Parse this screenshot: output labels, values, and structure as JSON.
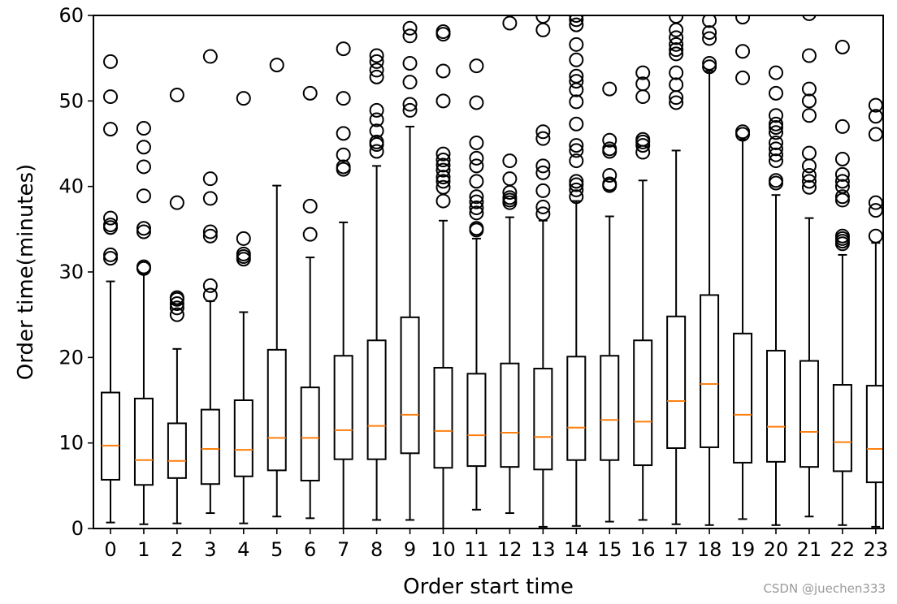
{
  "chart_data": {
    "type": "box",
    "xlabel": "Order start time",
    "ylabel": "Order time(minutes)",
    "ylim": [
      0,
      60
    ],
    "yticks": [
      0,
      10,
      20,
      30,
      40,
      50,
      60
    ],
    "categories": [
      "0",
      "1",
      "2",
      "3",
      "4",
      "5",
      "6",
      "7",
      "8",
      "9",
      "10",
      "11",
      "12",
      "13",
      "14",
      "15",
      "16",
      "17",
      "18",
      "19",
      "20",
      "21",
      "22",
      "23"
    ],
    "median_color": "#ff7f0e",
    "box_color": "#000000",
    "boxes": [
      {
        "label": "0",
        "whislo": 0.7,
        "q1": 5.7,
        "med": 9.7,
        "q3": 15.9,
        "whishi": 28.9,
        "fliers": [
          31.6,
          32.0,
          35.2,
          35.5,
          36.3,
          46.7,
          50.5,
          54.6
        ]
      },
      {
        "label": "1",
        "whislo": 0.5,
        "q1": 5.1,
        "med": 8.0,
        "q3": 15.2,
        "whishi": 29.8,
        "fliers": [
          30.4,
          30.6,
          34.7,
          35.1,
          38.9,
          42.3,
          44.6,
          46.8
        ]
      },
      {
        "label": "2",
        "whislo": 0.6,
        "q1": 5.9,
        "med": 7.9,
        "q3": 12.3,
        "whishi": 21.0,
        "fliers": [
          25.0,
          25.8,
          26.3,
          26.8,
          27.0,
          38.1,
          50.7
        ]
      },
      {
        "label": "3",
        "whislo": 1.8,
        "q1": 5.2,
        "med": 9.3,
        "q3": 13.9,
        "whishi": 26.6,
        "fliers": [
          27.3,
          28.4,
          34.2,
          34.7,
          38.6,
          40.9,
          55.2
        ]
      },
      {
        "label": "4",
        "whislo": 0.6,
        "q1": 6.1,
        "med": 9.2,
        "q3": 15.0,
        "whishi": 25.3,
        "fliers": [
          31.5,
          31.8,
          32.1,
          33.9,
          50.3
        ]
      },
      {
        "label": "5",
        "whislo": 1.4,
        "q1": 6.8,
        "med": 10.6,
        "q3": 20.9,
        "whishi": 40.1,
        "fliers": [
          54.2
        ]
      },
      {
        "label": "6",
        "whislo": 1.2,
        "q1": 5.6,
        "med": 10.6,
        "q3": 16.5,
        "whishi": 31.7,
        "fliers": [
          34.4,
          37.7,
          50.9
        ]
      },
      {
        "label": "7",
        "whislo": 0.0,
        "q1": 8.1,
        "med": 11.5,
        "q3": 20.2,
        "whishi": 35.8,
        "fliers": [
          42.0,
          42.3,
          43.7,
          46.2,
          50.3,
          56.1
        ]
      },
      {
        "label": "8",
        "whislo": 1.0,
        "q1": 8.1,
        "med": 12.0,
        "q3": 22.0,
        "whishi": 42.4,
        "fliers": [
          44.1,
          44.9,
          45.2,
          46.5,
          47.8,
          48.9,
          52.8,
          53.6,
          54.6,
          55.3
        ]
      },
      {
        "label": "9",
        "whislo": 1.0,
        "q1": 8.8,
        "med": 13.3,
        "q3": 24.7,
        "whishi": 47.0,
        "fliers": [
          48.9,
          49.6,
          52.2,
          54.4,
          57.6,
          58.5
        ]
      },
      {
        "label": "10",
        "whislo": 0.0,
        "q1": 7.1,
        "med": 11.4,
        "q3": 18.8,
        "whishi": 36.0,
        "fliers": [
          38.3,
          39.9,
          40.6,
          41.1,
          41.9,
          42.5,
          43.1,
          43.8,
          50.0,
          53.5,
          57.8,
          58.1
        ]
      },
      {
        "label": "11",
        "whislo": 2.2,
        "q1": 7.3,
        "med": 10.9,
        "q3": 18.1,
        "whishi": 33.9,
        "fliers": [
          34.9,
          35.1,
          36.9,
          37.5,
          38.2,
          38.8,
          40.6,
          42.4,
          43.3,
          45.1,
          49.8,
          54.1
        ]
      },
      {
        "label": "12",
        "whislo": 1.8,
        "q1": 7.2,
        "med": 11.2,
        "q3": 19.3,
        "whishi": 36.4,
        "fliers": [
          38.1,
          38.4,
          38.7,
          39.3,
          40.9,
          43.0,
          59.1
        ]
      },
      {
        "label": "13",
        "whislo": 0.2,
        "q1": 6.9,
        "med": 10.7,
        "q3": 18.7,
        "whishi": 36.0,
        "fliers": [
          36.8,
          37.6,
          39.5,
          41.6,
          42.4,
          45.6,
          46.4,
          58.3,
          59.9
        ]
      },
      {
        "label": "14",
        "whislo": 0.3,
        "q1": 8.0,
        "med": 11.8,
        "q3": 20.1,
        "whishi": 38.3,
        "fliers": [
          38.8,
          39.6,
          40.2,
          40.6,
          43.0,
          44.2,
          44.8,
          47.3,
          49.9,
          51.3,
          52.3,
          52.9,
          54.8,
          56.6,
          58.9,
          59.5,
          60.0
        ]
      },
      {
        "label": "15",
        "whislo": 0.8,
        "q1": 8.0,
        "med": 12.7,
        "q3": 20.2,
        "whishi": 36.5,
        "fliers": [
          40.1,
          40.3,
          41.3,
          44.1,
          44.4,
          45.4,
          51.4
        ]
      },
      {
        "label": "16",
        "whislo": 1.0,
        "q1": 7.4,
        "med": 12.5,
        "q3": 22.0,
        "whishi": 40.7,
        "fliers": [
          44.0,
          44.8,
          45.2,
          45.5,
          50.5,
          52.0,
          53.3
        ]
      },
      {
        "label": "17",
        "whislo": 0.5,
        "q1": 9.4,
        "med": 14.9,
        "q3": 24.8,
        "whishi": 44.2,
        "fliers": [
          49.8,
          50.4,
          51.9,
          53.3,
          55.5,
          56.0,
          56.6,
          57.4,
          58.3,
          59.9
        ]
      },
      {
        "label": "18",
        "whislo": 0.4,
        "q1": 9.5,
        "med": 16.9,
        "q3": 27.3,
        "whishi": 53.5,
        "fliers": [
          54.0,
          54.4,
          57.3,
          58.0,
          59.4
        ]
      },
      {
        "label": "19",
        "whislo": 1.1,
        "q1": 7.7,
        "med": 13.3,
        "q3": 22.8,
        "whishi": 45.5,
        "fliers": [
          46.1,
          46.4,
          52.7,
          55.8,
          59.8
        ]
      },
      {
        "label": "20",
        "whislo": 0.4,
        "q1": 7.8,
        "med": 11.9,
        "q3": 20.8,
        "whishi": 39.0,
        "fliers": [
          40.4,
          40.7,
          43.0,
          43.7,
          44.4,
          45.1,
          46.3,
          46.9,
          47.3,
          48.3,
          50.9,
          53.3
        ]
      },
      {
        "label": "21",
        "whislo": 1.4,
        "q1": 7.2,
        "med": 11.3,
        "q3": 19.6,
        "whishi": 36.3,
        "fliers": [
          39.9,
          40.6,
          41.3,
          42.4,
          43.9,
          48.3,
          50.0,
          51.4,
          55.3,
          60.2
        ]
      },
      {
        "label": "22",
        "whislo": 0.4,
        "q1": 6.7,
        "med": 10.1,
        "q3": 16.8,
        "whishi": 32.0,
        "fliers": [
          33.3,
          33.6,
          33.9,
          34.2,
          38.4,
          38.8,
          40.0,
          40.6,
          41.4,
          43.2,
          47.0,
          56.3
        ]
      },
      {
        "label": "23",
        "whislo": 0.2,
        "q1": 5.4,
        "med": 9.3,
        "q3": 16.7,
        "whishi": 33.4,
        "fliers": [
          34.2,
          37.2,
          38.1,
          46.1,
          48.2,
          49.5
        ]
      }
    ]
  },
  "watermark": "CSDN @juechen333"
}
